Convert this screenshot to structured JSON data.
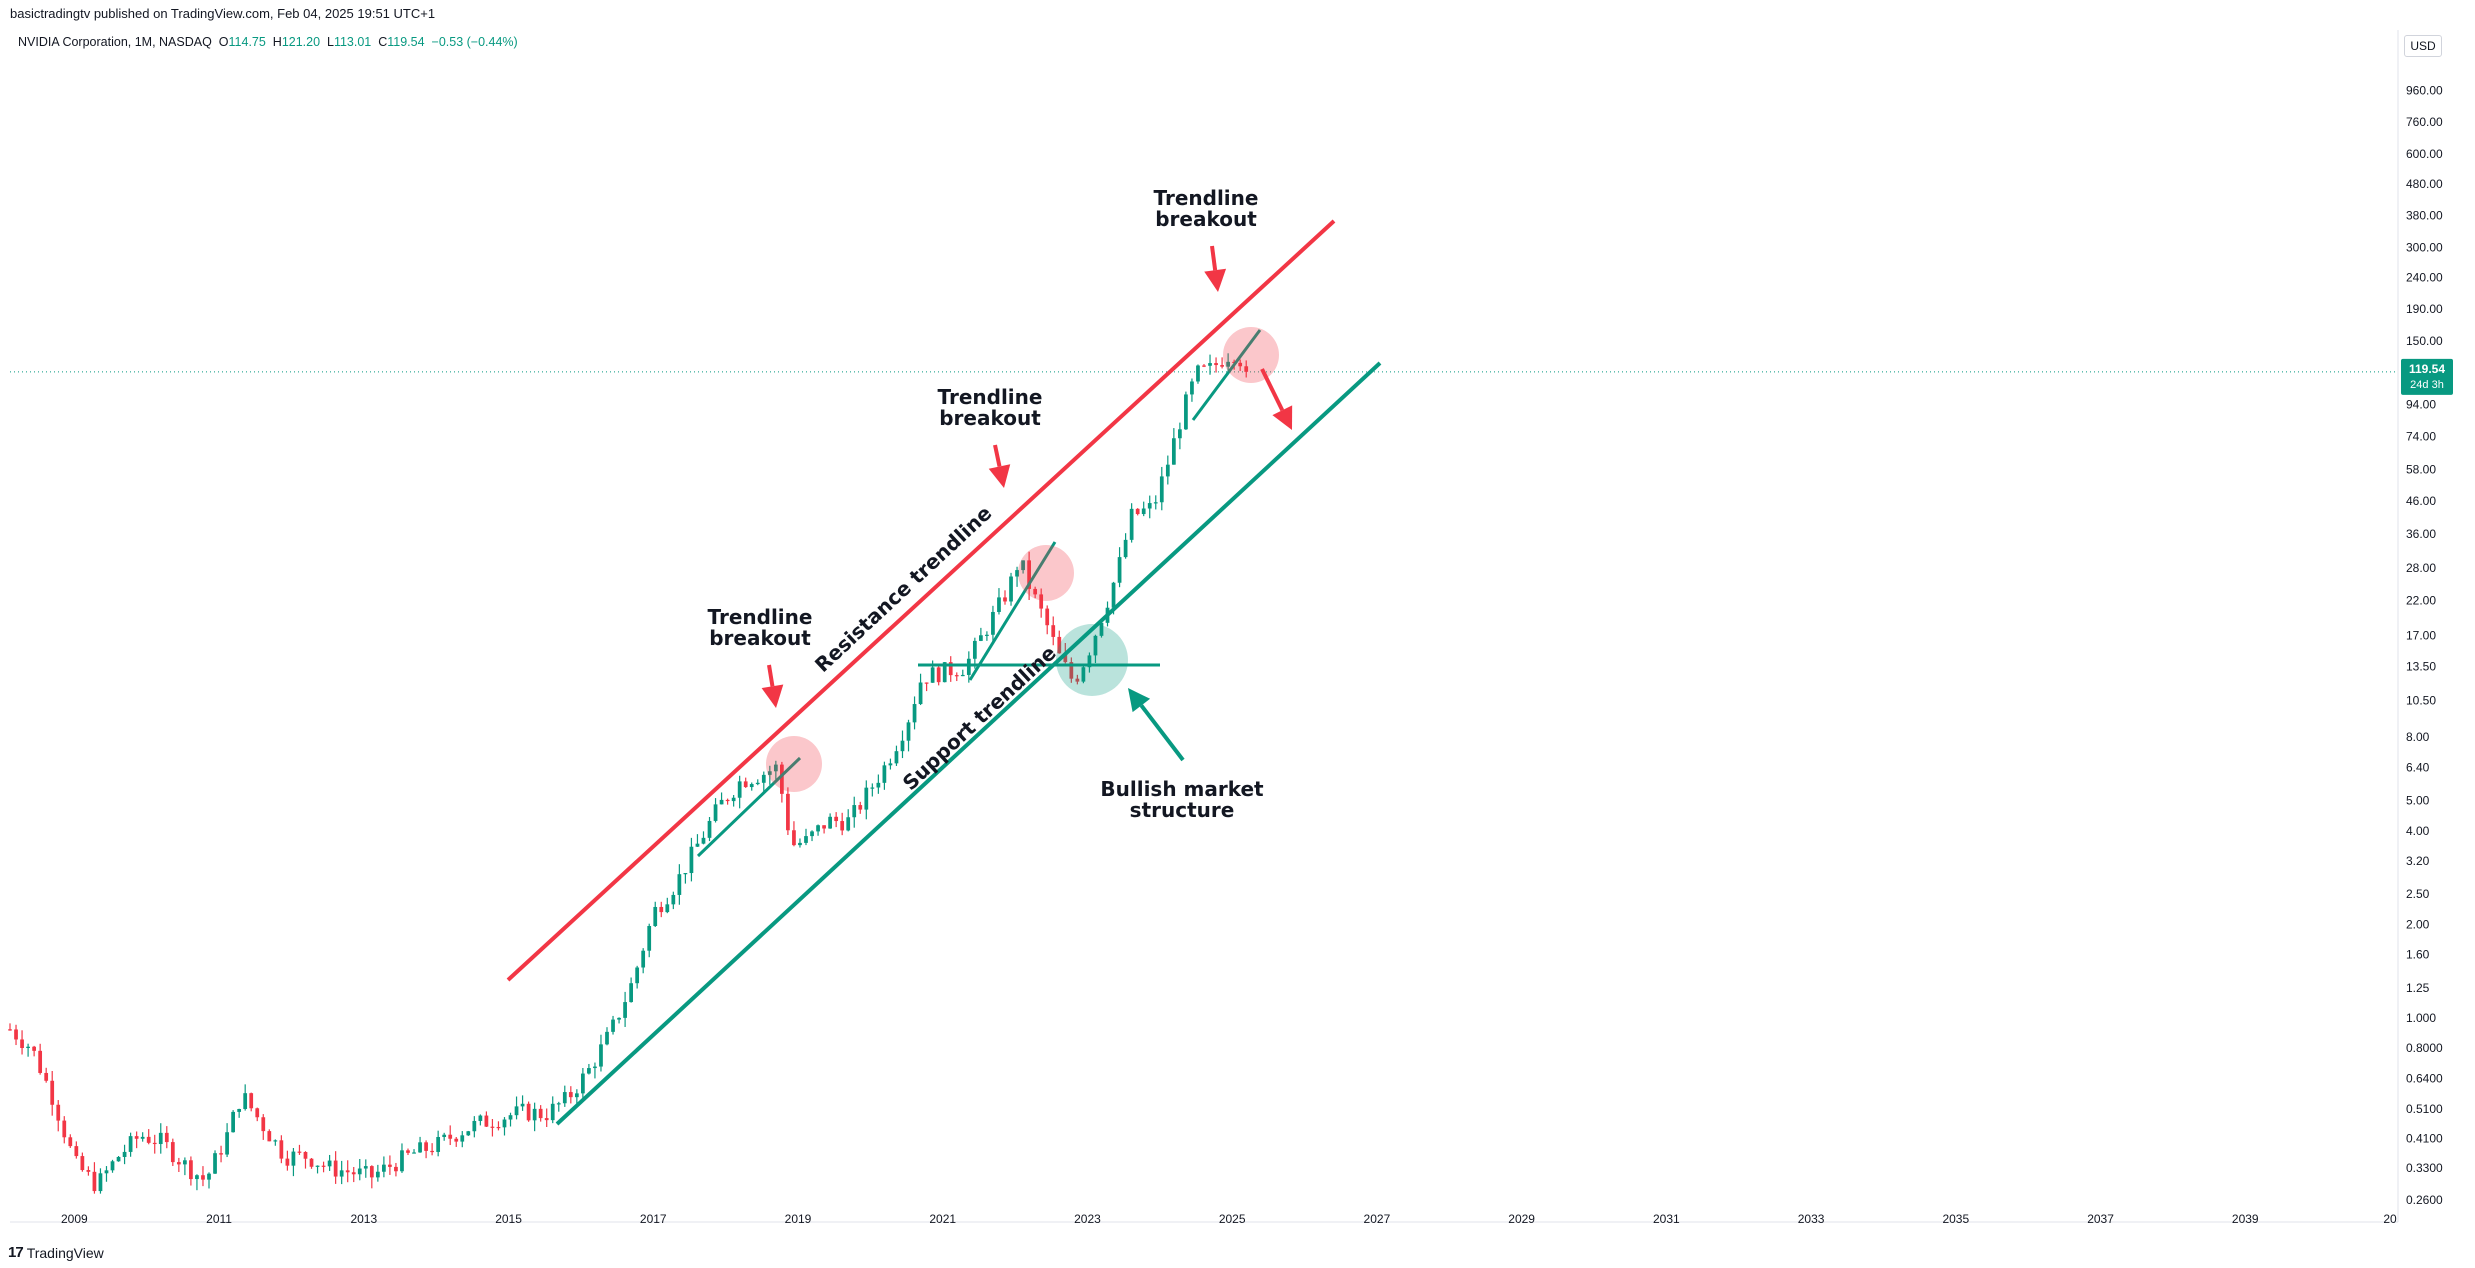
{
  "header": {
    "publish_line": "basictradingtv published on TradingView.com, Feb 04, 2025 19:51 UTC+1",
    "symbol": "NVIDIA Corporation, 1M, NASDAQ",
    "ohlc": {
      "o_label": "O",
      "o": "114.75",
      "h_label": "H",
      "h": "121.20",
      "l_label": "L",
      "l": "113.01",
      "c_label": "C",
      "c": "119.54",
      "change": "−0.53 (−0.44%)"
    },
    "currency": "USD"
  },
  "footer": {
    "brand": "TradingView",
    "logo": "17"
  },
  "colors": {
    "up": "#089981",
    "down": "#f23645",
    "resistance": "#f23645",
    "support": "#089981",
    "arrow_red": "#f23645",
    "price_line": "#089981"
  },
  "chart_data": {
    "type": "candlestick",
    "symbol": "NVDA",
    "interval": "1M",
    "y_scale": "log",
    "ylim": [
      0.26,
      1150
    ],
    "xlim": [
      2008.0,
      2041.0
    ],
    "y_ticks": [
      "960.00",
      "760.00",
      "600.00",
      "480.00",
      "380.00",
      "300.00",
      "240.00",
      "190.00",
      "150.00",
      "120.00",
      "94.00",
      "74.00",
      "58.00",
      "46.00",
      "36.00",
      "28.00",
      "22.00",
      "17.00",
      "13.50",
      "10.50",
      "8.00",
      "6.40",
      "5.00",
      "4.00",
      "3.20",
      "2.50",
      "2.00",
      "1.60",
      "1.25",
      "1.000",
      "0.8000",
      "0.6400",
      "0.5100",
      "0.4100",
      "0.3300",
      "0.2600"
    ],
    "x_ticks": [
      "2009",
      "2011",
      "2013",
      "2015",
      "2017",
      "2019",
      "2021",
      "2023",
      "2025",
      "2027",
      "2029",
      "2031",
      "2033",
      "2035",
      "2037",
      "2039",
      "20"
    ],
    "last_price": {
      "value": "119.54",
      "countdown": "24d 3h"
    },
    "candles": [
      [
        "2008.0",
        0.92
      ],
      [
        "2008.3",
        0.8
      ],
      [
        "2008.6",
        0.55
      ],
      [
        "2008.9",
        0.34
      ],
      [
        "2009.2",
        0.29
      ],
      [
        "2009.5",
        0.36
      ],
      [
        "2009.8",
        0.42
      ],
      [
        "2010.1",
        0.4
      ],
      [
        "2010.4",
        0.34
      ],
      [
        "2010.7",
        0.3
      ],
      [
        "2011.0",
        0.42
      ],
      [
        "2011.2",
        0.57
      ],
      [
        "2011.5",
        0.45
      ],
      [
        "2011.8",
        0.36
      ],
      [
        "2012.1",
        0.36
      ],
      [
        "2012.4",
        0.33
      ],
      [
        "2012.7",
        0.32
      ],
      [
        "2013.0",
        0.31
      ],
      [
        "2013.3",
        0.34
      ],
      [
        "2013.6",
        0.37
      ],
      [
        "2013.9",
        0.39
      ],
      [
        "2014.2",
        0.43
      ],
      [
        "2014.5",
        0.46
      ],
      [
        "2014.8",
        0.48
      ],
      [
        "2015.1",
        0.5
      ],
      [
        "2015.4",
        0.49
      ],
      [
        "2015.7",
        0.55
      ],
      [
        "2016.0",
        0.68
      ],
      [
        "2016.3",
        0.9
      ],
      [
        "2016.6",
        1.3
      ],
      [
        "2016.9",
        2.2
      ],
      [
        "2017.2",
        2.7
      ],
      [
        "2017.5",
        3.6
      ],
      [
        "2017.8",
        4.8
      ],
      [
        "2018.1",
        5.8
      ],
      [
        "2018.4",
        6.1
      ],
      [
        "2018.6",
        6.4
      ],
      [
        "2018.8",
        3.6
      ],
      [
        "2019.0",
        3.7
      ],
      [
        "2019.3",
        4.3
      ],
      [
        "2019.6",
        4.3
      ],
      [
        "2019.9",
        5.5
      ],
      [
        "2020.1",
        6.5
      ],
      [
        "2020.4",
        9.0
      ],
      [
        "2020.6",
        12.5
      ],
      [
        "2020.9",
        13.0
      ],
      [
        "2021.2",
        13.5
      ],
      [
        "2021.5",
        18.0
      ],
      [
        "2021.8",
        24.0
      ],
      [
        "2021.95",
        30.0
      ],
      [
        "2022.1",
        24.0
      ],
      [
        "2022.3",
        19.0
      ],
      [
        "2022.5",
        14.5
      ],
      [
        "2022.7",
        12.0
      ],
      [
        "2022.9",
        15.0
      ],
      [
        "2023.1",
        20.0
      ],
      [
        "2023.3",
        27.0
      ],
      [
        "2023.5",
        41.0
      ],
      [
        "2023.8",
        44.0
      ],
      [
        "2024.0",
        61.0
      ],
      [
        "2024.2",
        88.0
      ],
      [
        "2024.4",
        118.0
      ],
      [
        "2024.6",
        122.0
      ],
      [
        "2024.8",
        135.0
      ],
      [
        "2024.95",
        138.0
      ],
      [
        "2025.1",
        119.54
      ]
    ],
    "annotations": [
      {
        "type": "text",
        "label": "Trendline\nbreakout"
      },
      {
        "type": "text",
        "label": "Trendline\nbreakout"
      },
      {
        "type": "text",
        "label": "Trendline\nbreakout"
      },
      {
        "type": "text",
        "label": "Resistance trendline"
      },
      {
        "type": "text",
        "label": "Support trendline"
      },
      {
        "type": "text",
        "label": "Bullish market\nstructure"
      }
    ]
  }
}
